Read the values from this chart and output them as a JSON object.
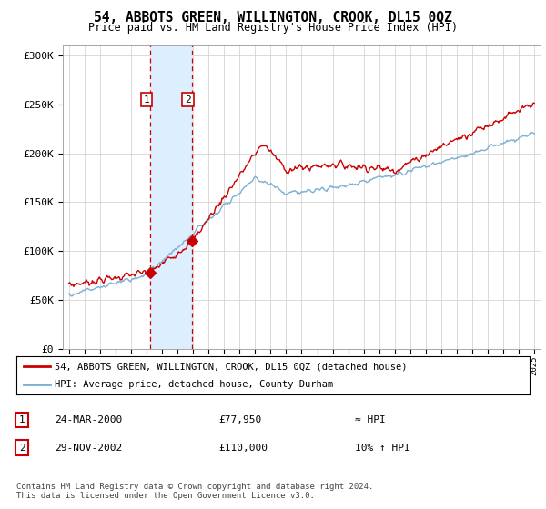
{
  "title": "54, ABBOTS GREEN, WILLINGTON, CROOK, DL15 0QZ",
  "subtitle": "Price paid vs. HM Land Registry's House Price Index (HPI)",
  "title_fontsize": 10.5,
  "subtitle_fontsize": 8.5,
  "ylim": [
    0,
    310000
  ],
  "yticks": [
    0,
    50000,
    100000,
    150000,
    200000,
    250000,
    300000
  ],
  "ytick_labels": [
    "£0",
    "£50K",
    "£100K",
    "£150K",
    "£200K",
    "£250K",
    "£300K"
  ],
  "price_paid_color": "#cc0000",
  "hpi_color": "#7bafd4",
  "highlight_color": "#ddeeff",
  "sale1_x": 2000.23,
  "sale1_price": 77950,
  "sale2_x": 2002.91,
  "sale2_price": 110000,
  "legend_line1": "54, ABBOTS GREEN, WILLINGTON, CROOK, DL15 0QZ (detached house)",
  "legend_line2": "HPI: Average price, detached house, County Durham",
  "table_row1_num": "1",
  "table_row1_date": "24-MAR-2000",
  "table_row1_price": "£77,950",
  "table_row1_hpi": "≈ HPI",
  "table_row2_num": "2",
  "table_row2_date": "29-NOV-2002",
  "table_row2_price": "£110,000",
  "table_row2_hpi": "10% ↑ HPI",
  "footer": "Contains HM Land Registry data © Crown copyright and database right 2024.\nThis data is licensed under the Open Government Licence v3.0.",
  "background_color": "#ffffff",
  "grid_color": "#cccccc"
}
